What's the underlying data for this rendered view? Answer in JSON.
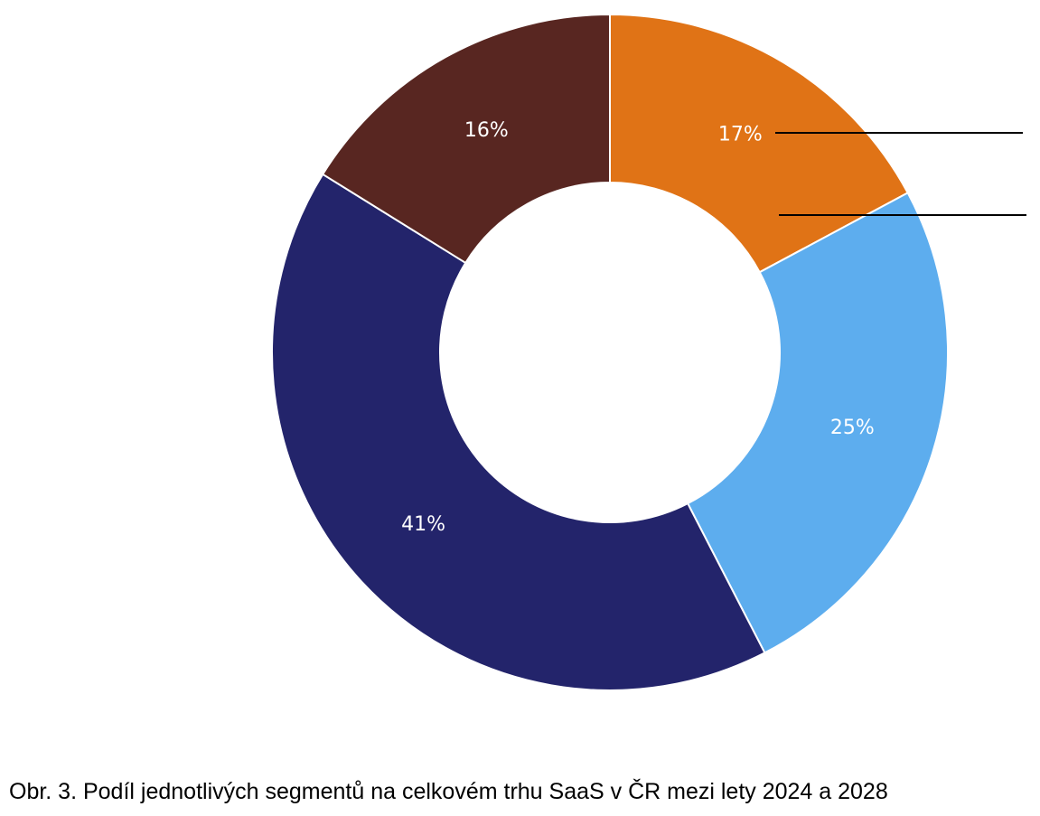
{
  "chart_data": {
    "type": "pie",
    "variant": "donut",
    "title": "",
    "segments": [
      {
        "label": "17%",
        "value": 17,
        "color": "#E07316"
      },
      {
        "label": "25%",
        "value": 25,
        "color": "#5DADEE"
      },
      {
        "label": "41%",
        "value": 41,
        "color": "#23246B"
      },
      {
        "label": "16%",
        "value": 16,
        "color": "#582621"
      }
    ],
    "start_angle_deg": 0,
    "direction": "clockwise"
  },
  "caption": "Obr. 3. Podíl jednotlivých segmentů na celkovém trhu SaaS v ČR mezi lety 2024 a 2028"
}
